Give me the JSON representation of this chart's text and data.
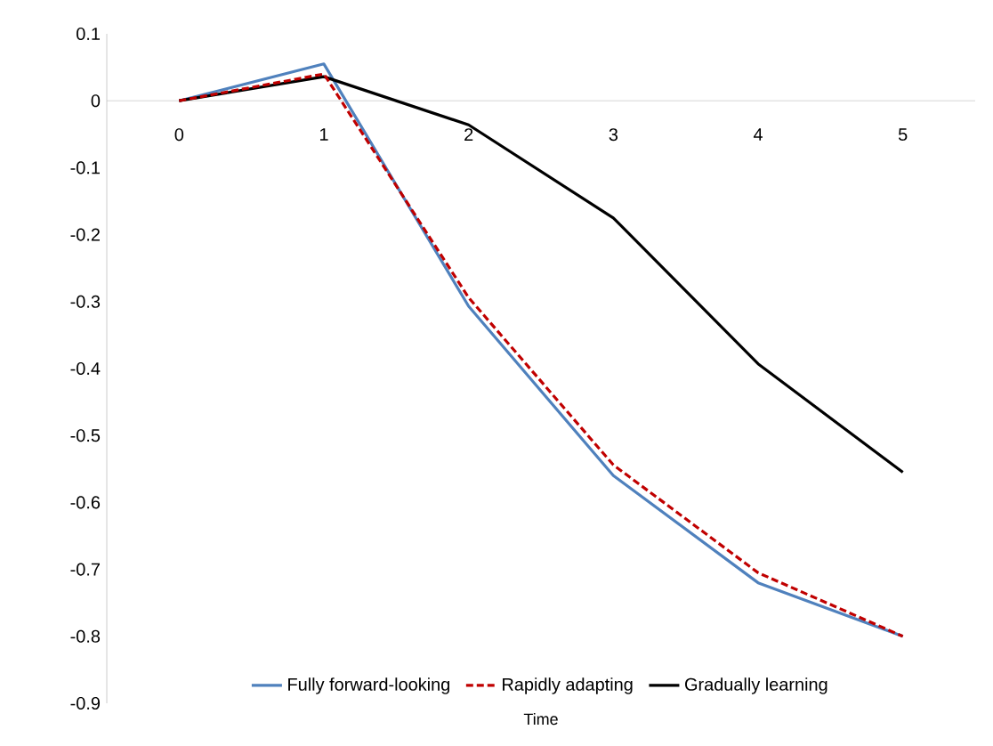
{
  "chart_data": {
    "type": "line",
    "xlabel": "Time",
    "categories": [
      "0",
      "1",
      "2",
      "3",
      "4",
      "5"
    ],
    "series": [
      {
        "name": "Fully forward-looking",
        "color": "#4f81bd",
        "values": [
          0,
          0.055,
          -0.307,
          -0.56,
          -0.72,
          -0.8
        ]
      },
      {
        "name": "Rapidly adapting",
        "color": "#c00000",
        "line_style": "dashed",
        "values": [
          0,
          0.04,
          -0.294,
          -0.544,
          -0.705,
          -0.8
        ]
      },
      {
        "name": "Gradually learning",
        "color": "#000000",
        "values": [
          0,
          0.036,
          -0.036,
          -0.175,
          -0.393,
          -0.555
        ]
      }
    ],
    "ylim": [
      -0.9,
      0.1
    ],
    "yticks": [
      -0.9,
      -0.8,
      -0.7,
      -0.6,
      -0.5,
      -0.4,
      -0.3,
      -0.2,
      -0.1,
      0,
      0.1
    ],
    "grid": false,
    "legend": "bottom",
    "marker": "none"
  }
}
